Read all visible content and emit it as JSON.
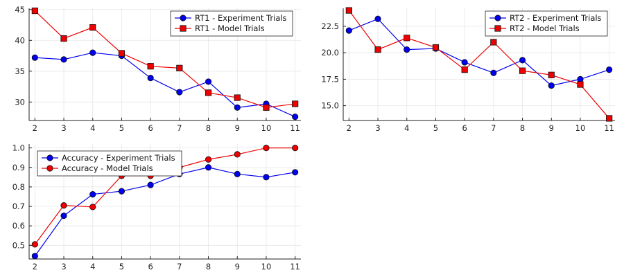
{
  "colors": {
    "experiment": "#0000ee",
    "model": "#ee0000",
    "grid": "#e6e6e6",
    "axis": "#222222",
    "marker_stroke": "#111111"
  },
  "chart_data": [
    {
      "id": "rt1",
      "type": "line",
      "title": "",
      "xlabel": "",
      "ylabel": "",
      "xlim": [
        1.8,
        11.2
      ],
      "ylim": [
        27,
        45.2
      ],
      "xticks": [
        2,
        3,
        4,
        5,
        6,
        7,
        8,
        9,
        10,
        11
      ],
      "yticks": [
        30,
        35,
        40,
        45
      ],
      "ytick_labels": [
        "30",
        "35",
        "40",
        "45"
      ],
      "grid": true,
      "legend": "top-right",
      "x": [
        2,
        3,
        4,
        5,
        6,
        7,
        8,
        9,
        10,
        11
      ],
      "series": [
        {
          "name": "RT1 - Experiment Trials",
          "color_key": "experiment",
          "marker": "circle",
          "values": [
            37.2,
            36.9,
            38.0,
            37.5,
            33.9,
            31.6,
            33.3,
            29.1,
            29.7,
            27.6
          ]
        },
        {
          "name": "RT1 - Model Trials",
          "color_key": "model",
          "marker": "square",
          "values": [
            44.8,
            40.3,
            42.1,
            37.9,
            35.8,
            35.5,
            31.5,
            30.7,
            29.1,
            29.7
          ]
        }
      ]
    },
    {
      "id": "rt2",
      "type": "line",
      "title": "",
      "xlabel": "",
      "ylabel": "",
      "xlim": [
        1.8,
        11.2
      ],
      "ylim": [
        13.6,
        24.2
      ],
      "xticks": [
        2,
        3,
        4,
        5,
        6,
        7,
        8,
        9,
        10,
        11
      ],
      "yticks": [
        15.0,
        17.5,
        20.0,
        22.5
      ],
      "ytick_labels": [
        "15.0",
        "17.5",
        "20.0",
        "22.5"
      ],
      "grid": true,
      "legend": "top-right",
      "x": [
        2,
        3,
        4,
        5,
        6,
        7,
        8,
        9,
        10,
        11
      ],
      "series": [
        {
          "name": "RT2 - Experiment Trials",
          "color_key": "experiment",
          "marker": "circle",
          "values": [
            22.1,
            23.2,
            20.3,
            20.4,
            19.1,
            18.1,
            19.3,
            16.9,
            17.5,
            18.4
          ]
        },
        {
          "name": "RT2 - Model Trials",
          "color_key": "model",
          "marker": "square",
          "values": [
            24.0,
            20.3,
            21.4,
            20.5,
            18.4,
            21.0,
            18.3,
            17.9,
            17.0,
            13.8
          ]
        }
      ]
    },
    {
      "id": "accuracy",
      "type": "line",
      "title": "",
      "xlabel": "",
      "ylabel": "",
      "xlim": [
        1.8,
        11.2
      ],
      "ylim": [
        0.43,
        1.02
      ],
      "xticks": [
        2,
        3,
        4,
        5,
        6,
        7,
        8,
        9,
        10,
        11
      ],
      "yticks": [
        0.5,
        0.6,
        0.7,
        0.8,
        0.9,
        1.0
      ],
      "ytick_labels": [
        "0.5",
        "0.6",
        "0.7",
        "0.8",
        "0.9",
        "1.0"
      ],
      "grid": true,
      "legend": "top-left",
      "x": [
        2,
        3,
        4,
        5,
        6,
        7,
        8,
        9,
        10,
        11
      ],
      "series": [
        {
          "name": "Accuracy - Experiment Trials",
          "color_key": "experiment",
          "marker": "circle",
          "values": [
            0.445,
            0.652,
            0.762,
            0.778,
            0.81,
            0.866,
            0.9,
            0.866,
            0.85,
            0.875
          ]
        },
        {
          "name": "Accuracy - Model Trials",
          "color_key": "model",
          "marker": "circle",
          "values": [
            0.505,
            0.705,
            0.697,
            0.857,
            0.857,
            0.9,
            0.941,
            0.967,
            1.0,
            1.0
          ]
        }
      ]
    }
  ]
}
